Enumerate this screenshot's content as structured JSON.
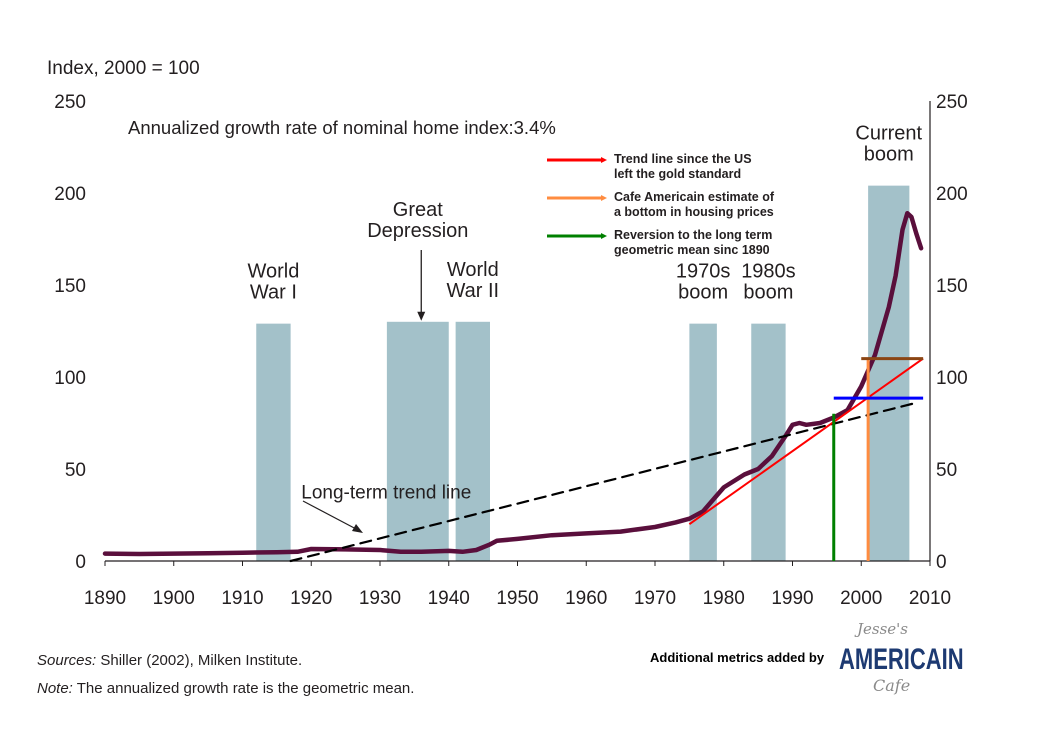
{
  "chart_data": {
    "type": "line",
    "y_unit_label": "Index, 2000 = 100",
    "subtitle": "Annualized growth rate of nominal home index:3.4%",
    "xlim": [
      1890,
      2010
    ],
    "ylim": [
      0,
      250
    ],
    "x_ticks": [
      "1890",
      "1900",
      "1910",
      "1920",
      "1930",
      "1940",
      "1950",
      "1960",
      "1970",
      "1980",
      "1990",
      "2000",
      "2010"
    ],
    "y_ticks": [
      "0",
      "50",
      "100",
      "150",
      "200",
      "250"
    ],
    "y_ticks_right": [
      "0",
      "50",
      "100",
      "150",
      "200",
      "250"
    ],
    "series": [
      {
        "name": "Nominal home index",
        "color": "#5a0f3c",
        "points": [
          [
            1890,
            4
          ],
          [
            1895,
            3.8
          ],
          [
            1900,
            4
          ],
          [
            1905,
            4.2
          ],
          [
            1910,
            4.5
          ],
          [
            1915,
            4.8
          ],
          [
            1918,
            5
          ],
          [
            1920,
            6.5
          ],
          [
            1925,
            6.3
          ],
          [
            1930,
            6
          ],
          [
            1933,
            5
          ],
          [
            1936,
            5
          ],
          [
            1940,
            5.5
          ],
          [
            1942,
            5
          ],
          [
            1944,
            6
          ],
          [
            1946,
            9
          ],
          [
            1947,
            11
          ],
          [
            1950,
            12
          ],
          [
            1955,
            14
          ],
          [
            1960,
            15
          ],
          [
            1965,
            16
          ],
          [
            1970,
            18.5
          ],
          [
            1973,
            21
          ],
          [
            1975,
            23
          ],
          [
            1977,
            27
          ],
          [
            1980,
            40
          ],
          [
            1983,
            47
          ],
          [
            1985,
            50
          ],
          [
            1987,
            57
          ],
          [
            1989,
            68
          ],
          [
            1990,
            74
          ],
          [
            1991,
            75
          ],
          [
            1992,
            74
          ],
          [
            1994,
            75
          ],
          [
            1996,
            78
          ],
          [
            1998,
            82
          ],
          [
            2000,
            95
          ],
          [
            2002,
            112
          ],
          [
            2004,
            138
          ],
          [
            2005,
            155
          ],
          [
            2006,
            180
          ],
          [
            2006.7,
            189
          ],
          [
            2007.3,
            187
          ],
          [
            2008,
            178
          ],
          [
            2008.7,
            170
          ]
        ]
      },
      {
        "name": "Long-term trend line",
        "color": "#000000",
        "dashed": true,
        "points": [
          [
            1917,
            0
          ],
          [
            2008,
            86
          ]
        ]
      }
    ],
    "shaded_periods": [
      {
        "label": [
          "World",
          "War I"
        ],
        "start": 1912,
        "end": 1917,
        "height": 129
      },
      {
        "label": [
          "Great",
          "Depression"
        ],
        "start": 1931,
        "end": 1940,
        "height": 130
      },
      {
        "label": [
          "World",
          "War II"
        ],
        "start": 1941,
        "end": 1946,
        "height": 130
      },
      {
        "label": [
          "1970s",
          "boom"
        ],
        "start": 1975,
        "end": 1979,
        "height": 129
      },
      {
        "label": [
          "1980s",
          "boom"
        ],
        "start": 1984,
        "end": 1989,
        "height": 129
      },
      {
        "label": [
          "Current",
          "boom"
        ],
        "start": 2001,
        "end": 2007,
        "height": 204
      }
    ],
    "annotations": [
      {
        "text": "Long-term trend line",
        "x": 1912,
        "y": 42
      },
      {
        "text": "Great Depression arrow",
        "x": 1936,
        "y": 130
      }
    ],
    "overlays": {
      "red_trend": {
        "color": "#ff0000",
        "from": [
          1975,
          20
        ],
        "to": [
          2009,
          110
        ]
      },
      "orange_line": {
        "color": "#ff8c40",
        "x": 2001,
        "y_from": 0,
        "y_to": 110
      },
      "green_line": {
        "color": "#008000",
        "x": 1996,
        "y_from": 0,
        "y_to": 80
      },
      "brown_line": {
        "color": "#8b4513",
        "x_from": 2000,
        "x_to": 2009,
        "y": 110
      },
      "blue_line": {
        "color": "#0000ff",
        "x_from": 1996,
        "x_to": 2009,
        "y": 88.5
      }
    },
    "legend": {
      "position": "top-right",
      "items": [
        {
          "color": "#ff0000",
          "line1": "Trend line since the US",
          "line2": "left the gold standard"
        },
        {
          "color": "#ff8c40",
          "line1": "Cafe Americain estimate of",
          "line2": "a bottom in housing prices"
        },
        {
          "color": "#008000",
          "line1": "Reversion to the long term",
          "line2": "geometric mean sinc 1890"
        }
      ]
    },
    "bar_color": "#a3c1c9",
    "grid": false
  },
  "footer": {
    "sources_label": "Sources:",
    "sources_text": " Shiller (2002), Milken Institute.",
    "note_label": "Note:",
    "note_text": " The annualized growth rate is the geometric mean."
  },
  "credit": {
    "text": "Additional metrics added by",
    "logo_top": "Jesse's",
    "logo_brand": "AMERICAIN",
    "logo_bottom": "Cafe"
  }
}
